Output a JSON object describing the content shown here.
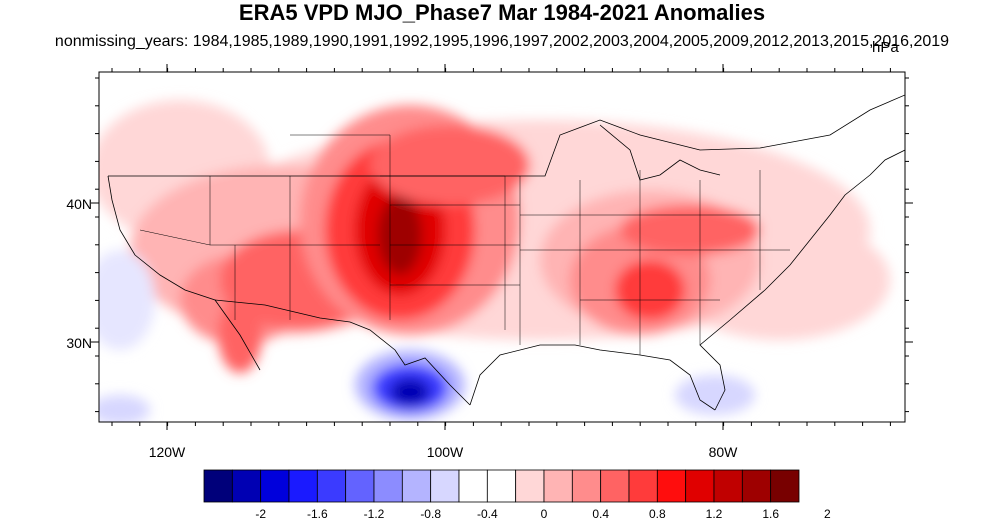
{
  "title": "ERA5 VPD MJO_Phase7 Mar 1984-2021 Anomalies",
  "subtitle": "nonmissing_years: 1984,1985,1989,1990,1991,1992,1995,1996,1997,2002,2003,2004,2005,2009,2012,2013,2015,2016,2019",
  "units": "hPa",
  "map": {
    "region": "CONUS",
    "lat_labels": [
      "40N",
      "30N"
    ],
    "lon_labels": [
      "120W",
      "100W",
      "80W"
    ]
  },
  "colorbar": {
    "labels": [
      "-2",
      "-1.6",
      "-1.2",
      "-0.8",
      "-0.4",
      "0",
      "0.4",
      "0.8",
      "1.2",
      "1.6",
      "2"
    ],
    "colors": [
      "#00007a",
      "#0000b3",
      "#0000dc",
      "#1a1aff",
      "#3b3bff",
      "#6363ff",
      "#8c8cff",
      "#b4b4ff",
      "#d7d7ff",
      "#ffffff",
      "#ffffff",
      "#ffd7d7",
      "#ffb4b4",
      "#ff8c8c",
      "#ff6363",
      "#ff3b3b",
      "#ff0d0d",
      "#e00000",
      "#c00000",
      "#9e0000",
      "#780000"
    ]
  },
  "anomalies": {
    "southern_rockies_plains": "high",
    "southwest": "moderate",
    "southeast": "moderate",
    "northern_mexico_texas_border": "negative",
    "florida": "slight_negative"
  }
}
